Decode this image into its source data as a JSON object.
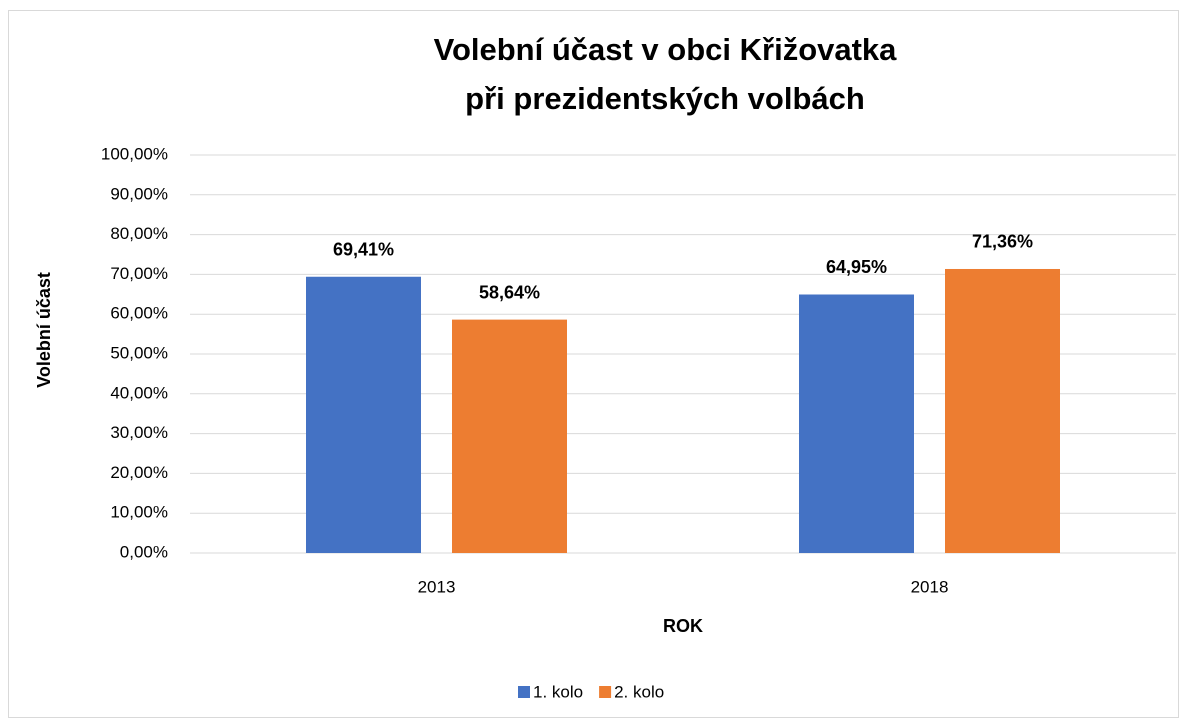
{
  "chart_data": {
    "type": "bar",
    "title": [
      "Volební účast v obci Křižovatka",
      "při prezidentských volbách"
    ],
    "x_label": "ROK",
    "y_label": "Volební účast",
    "categories": [
      "2013",
      "2018"
    ],
    "series": [
      {
        "name": "1. kolo",
        "color": "#4472c4",
        "values": [
          69.41,
          64.95
        ],
        "value_labels": [
          "69,41%",
          "64,95%"
        ]
      },
      {
        "name": "2. kolo",
        "color": "#ed7d31",
        "values": [
          58.64,
          71.36
        ],
        "value_labels": [
          "58,64%",
          "71,36%"
        ]
      }
    ],
    "ylim": [
      0,
      100
    ],
    "yticks": [
      {
        "value": 0,
        "label": "0,00%"
      },
      {
        "value": 10,
        "label": "10,00%"
      },
      {
        "value": 20,
        "label": "20,00%"
      },
      {
        "value": 30,
        "label": "30,00%"
      },
      {
        "value": 40,
        "label": "40,00%"
      },
      {
        "value": 50,
        "label": "50,00%"
      },
      {
        "value": 60,
        "label": "60,00%"
      },
      {
        "value": 70,
        "label": "70,00%"
      },
      {
        "value": 80,
        "label": "80,00%"
      },
      {
        "value": 90,
        "label": "90,00%"
      },
      {
        "value": 100,
        "label": "100,00%"
      }
    ],
    "grid": true,
    "legend": "bottom"
  }
}
